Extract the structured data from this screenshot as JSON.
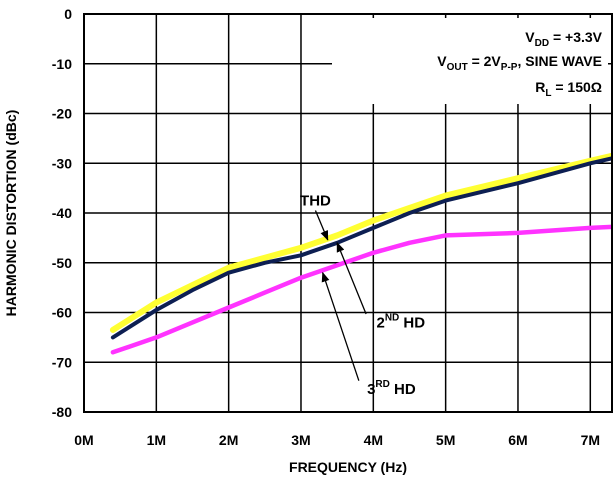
{
  "chart_data": {
    "type": "line",
    "xlabel": "FREQUENCY (Hz)",
    "ylabel": "HARMONIC DISTORTION (dBc)",
    "xlim": [
      0,
      7.3
    ],
    "ylim": [
      -80,
      0
    ],
    "x_ticks": [
      {
        "value": 0,
        "label": "0M"
      },
      {
        "value": 1,
        "label": "1M"
      },
      {
        "value": 2,
        "label": "2M"
      },
      {
        "value": 3,
        "label": "3M"
      },
      {
        "value": 4,
        "label": "4M"
      },
      {
        "value": 5,
        "label": "5M"
      },
      {
        "value": 6,
        "label": "6M"
      },
      {
        "value": 7,
        "label": "7M"
      }
    ],
    "y_ticks": [
      {
        "value": 0,
        "label": "0"
      },
      {
        "value": -10,
        "label": "-10"
      },
      {
        "value": -20,
        "label": "-20"
      },
      {
        "value": -30,
        "label": "-30"
      },
      {
        "value": -40,
        "label": "-40"
      },
      {
        "value": -50,
        "label": "-50"
      },
      {
        "value": -60,
        "label": "-60"
      },
      {
        "value": -70,
        "label": "-70"
      },
      {
        "value": -80,
        "label": "-80"
      }
    ],
    "grid": true,
    "conditions": {
      "vdd": {
        "main": "V",
        "sub": "DD",
        "rest": " = +3.3V"
      },
      "vout": {
        "main": "V",
        "sub": "OUT",
        "mid": " = 2V",
        "sub2": "P-P",
        "rest": ", SINE WAVE"
      },
      "rl": {
        "main": "R",
        "sub": "L",
        "rest": " = 150Ω"
      }
    },
    "series": [
      {
        "name": "THD",
        "color": "#ffff33",
        "points": [
          [
            0.4,
            -63.5
          ],
          [
            1,
            -58
          ],
          [
            1.5,
            -54.5
          ],
          [
            2,
            -51
          ],
          [
            2.5,
            -49
          ],
          [
            3,
            -47
          ],
          [
            3.5,
            -44.5
          ],
          [
            4,
            -41.5
          ],
          [
            4.5,
            -39
          ],
          [
            5,
            -36.5
          ],
          [
            6,
            -33
          ],
          [
            7,
            -29.5
          ],
          [
            7.3,
            -28.5
          ]
        ]
      },
      {
        "name": "2ND HD",
        "label_main": "2",
        "label_sup": "ND",
        "label_rest": " HD",
        "color": "#0d1f52",
        "points": [
          [
            0.4,
            -65
          ],
          [
            1,
            -59.5
          ],
          [
            1.5,
            -55.5
          ],
          [
            2,
            -52
          ],
          [
            2.5,
            -50
          ],
          [
            3,
            -48.5
          ],
          [
            3.5,
            -46
          ],
          [
            4,
            -43
          ],
          [
            4.5,
            -40
          ],
          [
            5,
            -37.5
          ],
          [
            6,
            -34
          ],
          [
            7,
            -30
          ],
          [
            7.3,
            -29
          ]
        ]
      },
      {
        "name": "3RD HD",
        "label_main": "3",
        "label_sup": "RD",
        "label_rest": " HD",
        "color": "#ff33ff",
        "points": [
          [
            0.4,
            -68
          ],
          [
            1,
            -65
          ],
          [
            1.5,
            -62
          ],
          [
            2,
            -59
          ],
          [
            2.5,
            -56
          ],
          [
            3,
            -53
          ],
          [
            3.5,
            -50.5
          ],
          [
            4,
            -48
          ],
          [
            4.5,
            -46
          ],
          [
            5,
            -44.5
          ],
          [
            6,
            -44
          ],
          [
            7,
            -43
          ],
          [
            7.3,
            -42.8
          ]
        ]
      }
    ],
    "annotations": [
      {
        "series": "THD",
        "text_x": 3.2,
        "text_y": -38.5,
        "arrow_from": [
          3.2,
          -39.5
        ],
        "arrow_to": [
          3.37,
          -45.4
        ]
      },
      {
        "series": "2ND HD",
        "text_x": 4.38,
        "text_y": -63,
        "arrow_from": [
          3.9,
          -60.3
        ],
        "arrow_to": [
          3.5,
          -46
        ]
      },
      {
        "series": "3RD HD",
        "text_x": 4.25,
        "text_y": -76.4,
        "arrow_from": [
          3.8,
          -73.7
        ],
        "arrow_to": [
          3.3,
          -52
        ]
      }
    ]
  }
}
